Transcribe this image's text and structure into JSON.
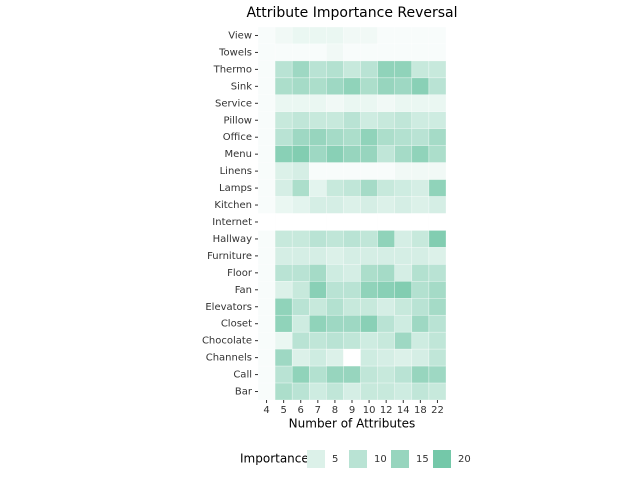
{
  "chart_data": {
    "type": "heatmap",
    "title": "Attribute Importance Reversal",
    "x_label": "Number of Attributes",
    "categories": [
      "4",
      "5",
      "6",
      "7",
      "8",
      "9",
      "10",
      "12",
      "14",
      "18",
      "22"
    ],
    "y_categories": [
      "View",
      "Towels",
      "Thermo",
      "Sink",
      "Service",
      "Pillow",
      "Office",
      "Menu",
      "Linens",
      "Lamps",
      "Kitchen",
      "Internet",
      "Hallway",
      "Furniture",
      "Floor",
      "Fan",
      "Elevators",
      "Closet",
      "Chocolate",
      "Channels",
      "Call",
      "Bar"
    ],
    "values": [
      [
        1,
        2,
        3,
        3,
        3,
        2,
        2,
        1,
        1,
        1,
        1
      ],
      [
        1,
        1,
        1,
        1,
        2,
        1,
        1,
        1,
        1,
        1,
        1
      ],
      [
        1,
        10,
        14,
        10,
        11,
        8,
        10,
        16,
        16,
        8,
        8
      ],
      [
        1,
        12,
        13,
        12,
        14,
        16,
        12,
        15,
        14,
        17,
        10
      ],
      [
        1,
        3,
        3,
        3,
        2,
        3,
        3,
        2,
        3,
        3,
        3
      ],
      [
        1,
        8,
        9,
        8,
        8,
        10,
        7,
        8,
        9,
        7,
        7
      ],
      [
        1,
        10,
        14,
        15,
        13,
        12,
        16,
        12,
        11,
        10,
        13
      ],
      [
        1,
        17,
        18,
        14,
        17,
        15,
        15,
        9,
        13,
        16,
        12
      ],
      [
        1,
        5,
        6,
        1,
        1,
        1,
        1,
        1,
        2,
        2,
        2
      ],
      [
        1,
        6,
        12,
        4,
        8,
        9,
        13,
        8,
        7,
        6,
        16
      ],
      [
        1,
        3,
        4,
        6,
        6,
        5,
        6,
        5,
        6,
        5,
        6
      ],
      [
        0,
        0,
        0,
        0,
        0,
        0,
        0,
        0,
        0,
        0,
        0
      ],
      [
        1,
        8,
        8,
        10,
        9,
        10,
        9,
        16,
        6,
        8,
        18
      ],
      [
        1,
        6,
        6,
        6,
        5,
        6,
        6,
        6,
        6,
        6,
        5
      ],
      [
        1,
        10,
        10,
        13,
        7,
        6,
        12,
        13,
        6,
        11,
        10
      ],
      [
        1,
        5,
        8,
        17,
        10,
        10,
        16,
        17,
        18,
        11,
        13
      ],
      [
        1,
        16,
        10,
        8,
        11,
        8,
        8,
        6,
        8,
        10,
        13
      ],
      [
        1,
        16,
        7,
        16,
        14,
        14,
        17,
        10,
        7,
        14,
        10
      ],
      [
        1,
        3,
        10,
        9,
        10,
        9,
        7,
        8,
        14,
        7,
        9
      ],
      [
        1,
        14,
        5,
        7,
        5,
        0,
        7,
        6,
        5,
        6,
        9
      ],
      [
        1,
        10,
        16,
        11,
        15,
        15,
        9,
        8,
        10,
        15,
        14
      ],
      [
        1,
        12,
        10,
        7,
        9,
        6,
        8,
        8,
        7,
        9,
        8
      ]
    ],
    "color_low": "#ffffff",
    "color_high": "#66c2a0",
    "zlim": [
      0,
      22
    ],
    "legend_title": "Importance",
    "legend_ticks": [
      5,
      10,
      15,
      20
    ]
  }
}
